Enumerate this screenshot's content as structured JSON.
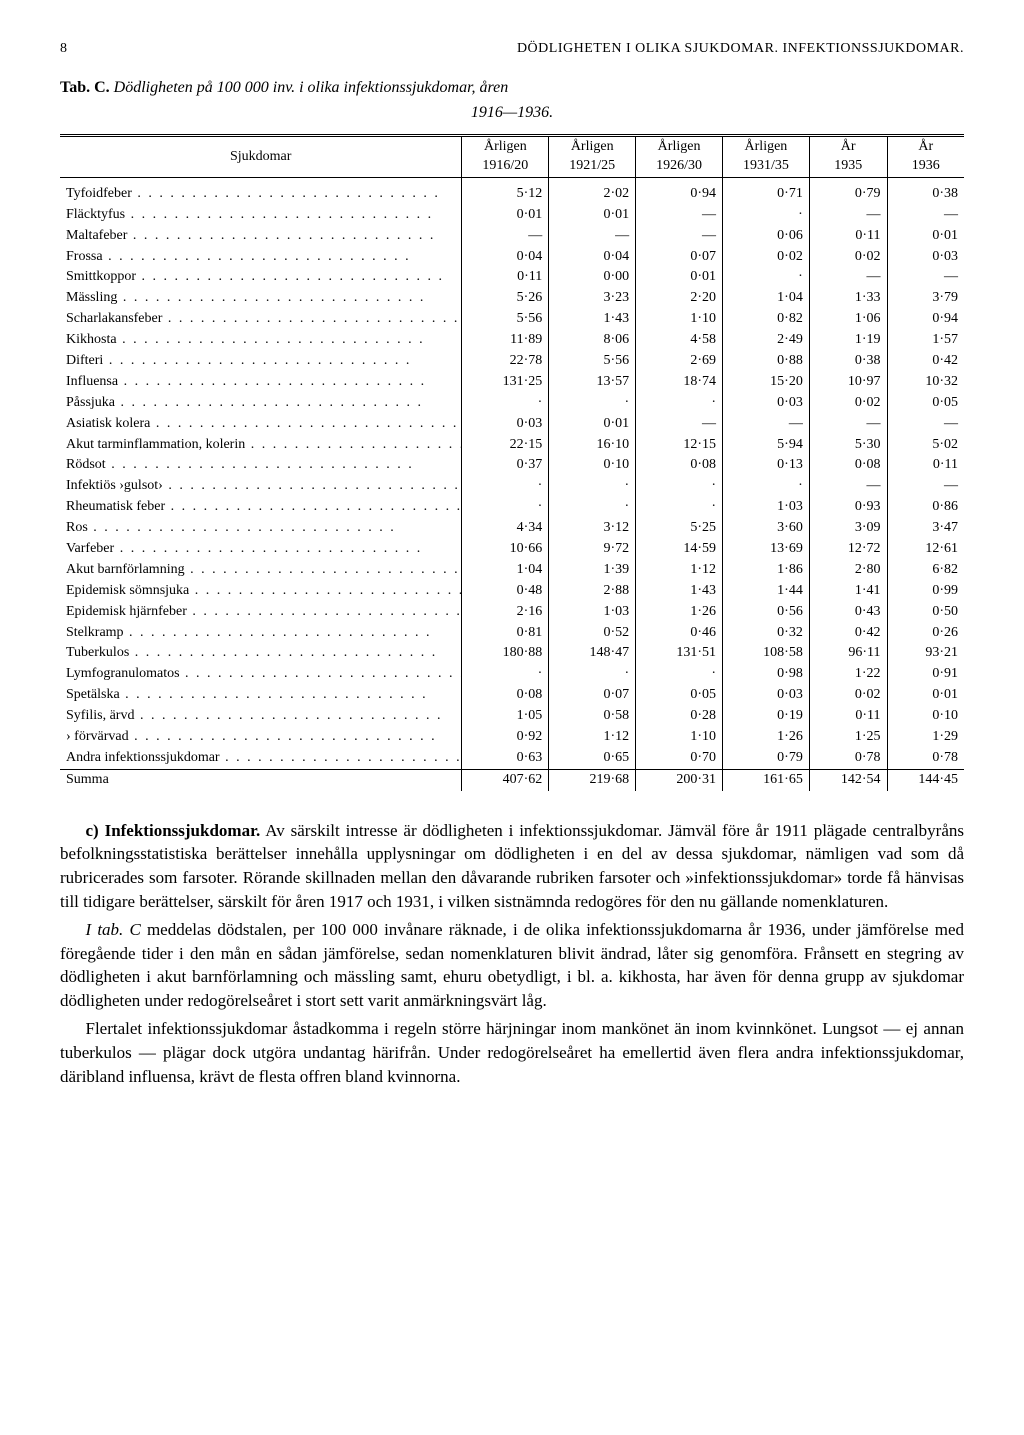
{
  "header": {
    "page_num": "8",
    "title_caps": "DÖDLIGHETEN I OLIKA SJUKDOMAR.  INFEKTIONSSJUKDOMAR."
  },
  "table_caption": {
    "tab": "Tab. C.",
    "title": "Dödligheten på 100 000 inv. i olika infektionssjukdomar, åren",
    "years": "1916—1936."
  },
  "columns": [
    {
      "h1": "Sjukdomar",
      "h2": ""
    },
    {
      "h1": "Årligen",
      "h2": "1916/20"
    },
    {
      "h1": "Årligen",
      "h2": "1921/25"
    },
    {
      "h1": "Årligen",
      "h2": "1926/30"
    },
    {
      "h1": "Årligen",
      "h2": "1931/35"
    },
    {
      "h1": "År",
      "h2": "1935"
    },
    {
      "h1": "År",
      "h2": "1936"
    }
  ],
  "rows": [
    {
      "label": "Tyfoidfeber",
      "v": [
        "5·12",
        "2·02",
        "0·94",
        "0·71",
        "0·79",
        "0·38"
      ]
    },
    {
      "label": "Fläcktyfus",
      "v": [
        "0·01",
        "0·01",
        "—",
        "·",
        "—",
        "—"
      ]
    },
    {
      "label": "Maltafeber",
      "v": [
        "—",
        "—",
        "—",
        "0·06",
        "0·11",
        "0·01"
      ]
    },
    {
      "label": "Frossa",
      "v": [
        "0·04",
        "0·04",
        "0·07",
        "0·02",
        "0·02",
        "0·03"
      ]
    },
    {
      "label": "Smittkoppor",
      "v": [
        "0·11",
        "0·00",
        "0·01",
        "·",
        "—",
        "—"
      ]
    },
    {
      "label": "Mässling",
      "v": [
        "5·26",
        "3·23",
        "2·20",
        "1·04",
        "1·33",
        "3·79"
      ]
    },
    {
      "label": "Scharlakansfeber",
      "v": [
        "5·56",
        "1·43",
        "1·10",
        "0·82",
        "1·06",
        "0·94"
      ]
    },
    {
      "label": "Kikhosta",
      "v": [
        "11·89",
        "8·06",
        "4·58",
        "2·49",
        "1·19",
        "1·57"
      ]
    },
    {
      "label": "Difteri",
      "v": [
        "22·78",
        "5·56",
        "2·69",
        "0·88",
        "0·38",
        "0·42"
      ]
    },
    {
      "label": "Influensa",
      "v": [
        "131·25",
        "13·57",
        "18·74",
        "15·20",
        "10·97",
        "10·32"
      ]
    },
    {
      "label": "Påssjuka",
      "v": [
        "·",
        "·",
        "·",
        "0·03",
        "0·02",
        "0·05"
      ]
    },
    {
      "label": "Asiatisk kolera",
      "v": [
        "0·03",
        "0·01",
        "—",
        "—",
        "—",
        "—"
      ]
    },
    {
      "label": "Akut tarminflammation, kolerin",
      "v": [
        "22·15",
        "16·10",
        "12·15",
        "5·94",
        "5·30",
        "5·02"
      ]
    },
    {
      "label": "Rödsot",
      "v": [
        "0·37",
        "0·10",
        "0·08",
        "0·13",
        "0·08",
        "0·11"
      ]
    },
    {
      "label": "Infektiös ›gulsot›",
      "v": [
        "·",
        "·",
        "·",
        "·",
        "—",
        "—"
      ]
    },
    {
      "label": "Rheumatisk feber",
      "v": [
        "·",
        "·",
        "·",
        "1·03",
        "0·93",
        "0·86"
      ]
    },
    {
      "label": "Ros",
      "v": [
        "4·34",
        "3·12",
        "5·25",
        "3·60",
        "3·09",
        "3·47"
      ]
    },
    {
      "label": "Varfeber",
      "v": [
        "10·66",
        "9·72",
        "14·59",
        "13·69",
        "12·72",
        "12·61"
      ]
    },
    {
      "label": "Akut barnförlamning",
      "v": [
        "1·04",
        "1·39",
        "1·12",
        "1·86",
        "2·80",
        "6·82"
      ]
    },
    {
      "label": "Epidemisk sömnsjuka",
      "v": [
        "0·48",
        "2·88",
        "1·43",
        "1·44",
        "1·41",
        "0·99"
      ]
    },
    {
      "label": "Epidemisk hjärnfeber",
      "v": [
        "2·16",
        "1·03",
        "1·26",
        "0·56",
        "0·43",
        "0·50"
      ]
    },
    {
      "label": "Stelkramp",
      "v": [
        "0·81",
        "0·52",
        "0·46",
        "0·32",
        "0·42",
        "0·26"
      ]
    },
    {
      "label": "Tuberkulos",
      "v": [
        "180·88",
        "148·47",
        "131·51",
        "108·58",
        "96·11",
        "93·21"
      ]
    },
    {
      "label": "Lymfogranulomatos",
      "v": [
        "·",
        "·",
        "·",
        "0·98",
        "1·22",
        "0·91"
      ]
    },
    {
      "label": "Spetälska",
      "v": [
        "0·08",
        "0·07",
        "0·05",
        "0·03",
        "0·02",
        "0·01"
      ]
    },
    {
      "label": "Syfilis, ärvd",
      "v": [
        "1·05",
        "0·58",
        "0·28",
        "0·19",
        "0·11",
        "0·10"
      ]
    },
    {
      "label": "    ›    förvärvad",
      "v": [
        "0·92",
        "1·12",
        "1·10",
        "1·26",
        "1·25",
        "1·29"
      ]
    },
    {
      "label": "Andra infektionssjukdomar",
      "v": [
        "0·63",
        "0·65",
        "0·70",
        "0·79",
        "0·78",
        "0·78"
      ]
    }
  ],
  "sum": {
    "label": "Summa",
    "v": [
      "407·62",
      "219·68",
      "200·31",
      "161·65",
      "142·54",
      "144·45"
    ]
  },
  "body": {
    "p1_lead": "c) Infektionssjukdomar.",
    "p1": "Av särskilt intresse är dödligheten i infektionssjukdomar. Jämväl före år 1911 plägade centralbyråns befolkningsstatistiska berättelser innehålla upplysningar om dödligheten i en del av dessa sjukdomar, nämligen vad som då rubricerades som farsoter. Rörande skillnaden mellan den dåvarande rubriken farsoter och »infektionssjukdomar» torde få hänvisas till tidigare berättelser, särskilt för åren 1917 och 1931, i vilken sistnämnda redogöres för den nu gällande nomenklaturen.",
    "p2_lead": "I tab. C",
    "p2": " meddelas dödstalen, per 100 000 invånare räknade, i de olika infektionssjukdomarna år 1936, under jämförelse med föregående tider i den mån en sådan jämförelse, sedan nomenklaturen blivit ändrad, låter sig genomföra. Frånsett en stegring av dödligheten i akut barnförlamning och mässling samt, ehuru obetydligt, i bl. a. kikhosta, har även för denna grupp av sjukdomar dödligheten under redogörelseåret i stort sett varit anmärkningsvärt låg.",
    "p3": "Flertalet infektionssjukdomar åstadkomma i regeln större härjningar inom mankönet än inom kvinnkönet. Lungsot — ej annan tuberkulos — plägar dock utgöra undantag härifrån. Under redogörelseåret ha emellertid även flera andra infektionssjukdomar, däribland influensa, krävt de flesta offren bland kvinnorna."
  }
}
